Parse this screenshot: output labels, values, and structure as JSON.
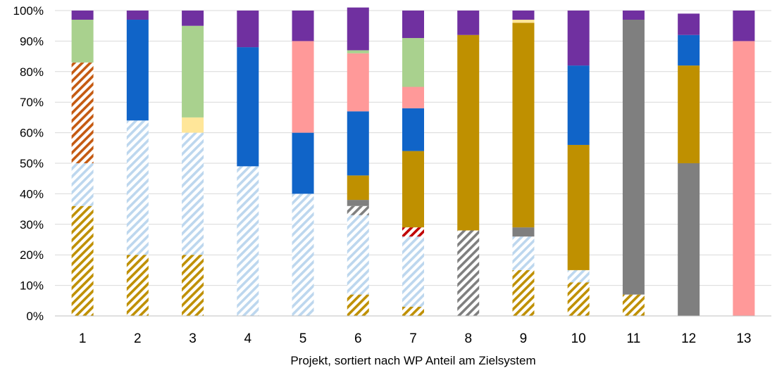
{
  "chart_data": {
    "type": "bar",
    "stacked": true,
    "title": "",
    "xlabel": "Projekt, sortiert nach WP Anteil am Zielsystem",
    "ylabel": "",
    "ylim": [
      0,
      100
    ],
    "yticks": [
      "0%",
      "10%",
      "20%",
      "30%",
      "40%",
      "50%",
      "60%",
      "70%",
      "80%",
      "90%",
      "100%"
    ],
    "grid": true,
    "legend": "none",
    "categories": [
      "1",
      "2",
      "3",
      "4",
      "5",
      "6",
      "7",
      "8",
      "9",
      "10",
      "11",
      "12",
      "13"
    ],
    "series": [
      {
        "color": "#BF9000",
        "pattern": "hatch",
        "values": [
          36,
          20,
          20,
          0,
          0,
          7,
          3,
          0,
          15,
          11,
          7,
          0,
          0
        ]
      },
      {
        "color": "#BDD7EE",
        "pattern": "hatch",
        "values": [
          14,
          44,
          40,
          49,
          40,
          26,
          23,
          0,
          11,
          4,
          0,
          0,
          0
        ]
      },
      {
        "color": "#C55A11",
        "pattern": "hatch",
        "values": [
          33,
          0,
          0,
          0,
          0,
          0,
          0,
          0,
          0,
          0,
          0,
          0,
          0
        ]
      },
      {
        "color": "#C00000",
        "pattern": "hatch",
        "values": [
          0,
          0,
          0,
          0,
          0,
          0,
          3,
          0,
          0,
          0,
          0,
          0,
          0
        ]
      },
      {
        "color": "#7F7F7F",
        "pattern": "hatch",
        "values": [
          0,
          0,
          0,
          0,
          0,
          3,
          0,
          28,
          0,
          0,
          0,
          0,
          0
        ]
      },
      {
        "color": "#7F7F7F",
        "pattern": "solid",
        "values": [
          0,
          0,
          0,
          0,
          0,
          2,
          0,
          0,
          3,
          0,
          90,
          50,
          0
        ]
      },
      {
        "color": "#BF9000",
        "pattern": "solid",
        "values": [
          0,
          0,
          0,
          0,
          0,
          8,
          25,
          64,
          67,
          41,
          0,
          32,
          0
        ]
      },
      {
        "color": "#FFE699",
        "pattern": "solid",
        "values": [
          0,
          0,
          5,
          0,
          0,
          0,
          0,
          0,
          1,
          0,
          0,
          0,
          0
        ]
      },
      {
        "color": "#1064C8",
        "pattern": "solid",
        "values": [
          0,
          33,
          0,
          39,
          20,
          21,
          14,
          0,
          0,
          26,
          0,
          10,
          0
        ]
      },
      {
        "color": "#FF9999",
        "pattern": "solid",
        "values": [
          0,
          0,
          0,
          0,
          30,
          19,
          7,
          0,
          0,
          0,
          0,
          0,
          90
        ]
      },
      {
        "color": "#A9D18E",
        "pattern": "solid",
        "values": [
          14,
          0,
          30,
          0,
          0,
          1,
          16,
          0,
          0,
          0,
          0,
          0,
          0
        ]
      },
      {
        "color": "#7030A0",
        "pattern": "solid",
        "values": [
          3,
          3,
          5,
          12,
          10,
          14,
          9,
          8,
          3,
          18,
          3,
          7,
          10
        ]
      }
    ]
  }
}
